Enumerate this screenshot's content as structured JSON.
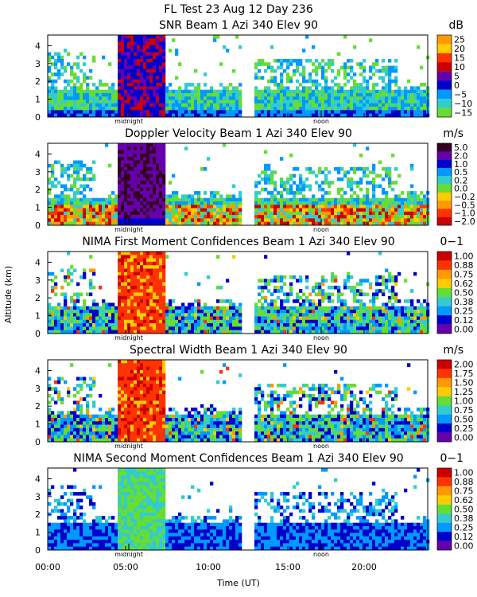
{
  "chart_data": {
    "type": "heatmap",
    "title": "FL Test  23 Aug 12 Day 236",
    "xlabel": "Time (UT)",
    "ylabel": "Altitude (km)",
    "x_ticks": [
      "00:00",
      "05:00",
      "10:00",
      "15:00",
      "20:00"
    ],
    "y_ticks": [
      "0",
      "1",
      "2",
      "3",
      "4"
    ],
    "markers": [
      "midnight",
      "noon"
    ],
    "panels": [
      {
        "title": "SNR Beam 1 Azi 340 Elev 90",
        "unit": "dB",
        "colorbar": [
          "25",
          "20",
          "15",
          "10",
          "5",
          "0",
          "−5",
          "−10",
          "−15"
        ],
        "colors": [
          "#ff9900",
          "#ffcc00",
          "#ff3300",
          "#cc0000",
          "#6600aa",
          "#0000cc",
          "#0099ff",
          "#33cccc",
          "#66dd33"
        ]
      },
      {
        "title": "Doppler Velocity Beam 1 Azi 340 Elev 90",
        "unit": "m/s",
        "colorbar": [
          "5.0",
          "2.0",
          "1.0",
          "0.5",
          "0.2",
          "0.0",
          "−0.2",
          "−0.5",
          "−1.0",
          "−2.0"
        ],
        "colors": [
          "#330022",
          "#6600aa",
          "#0000cc",
          "#0099ff",
          "#33cccc",
          "#66dd33",
          "#ffcc00",
          "#ff9900",
          "#ff3300",
          "#cc0000"
        ]
      },
      {
        "title": "NIMA First Moment Confidences Beam 1 Azi 340 Elev 90",
        "unit": "0−1",
        "colorbar": [
          "1.00",
          "0.88",
          "0.75",
          "0.62",
          "0.50",
          "0.38",
          "0.25",
          "0.12",
          "0.00"
        ],
        "colors": [
          "#cc0000",
          "#ff3300",
          "#ff9900",
          "#ffcc00",
          "#66dd33",
          "#33cccc",
          "#0099ff",
          "#0000cc",
          "#6600aa"
        ]
      },
      {
        "title": "Spectral Width Beam 1 Azi 340 Elev 90",
        "unit": "m/s",
        "colorbar": [
          "2.00",
          "1.75",
          "1.50",
          "1.25",
          "1.00",
          "0.75",
          "0.50",
          "0.25",
          "0.00"
        ],
        "colors": [
          "#cc0000",
          "#ff3300",
          "#ff9900",
          "#ffcc00",
          "#66dd33",
          "#33cccc",
          "#0099ff",
          "#0000cc",
          "#6600aa"
        ]
      },
      {
        "title": "NIMA Second Moment Confidences Beam 1 Azi 340 Elev 90",
        "unit": "0−1",
        "colorbar": [
          "1.00",
          "0.88",
          "0.75",
          "0.62",
          "0.50",
          "0.38",
          "0.25",
          "0.12",
          "0.00"
        ],
        "colors": [
          "#cc0000",
          "#ff3300",
          "#ff9900",
          "#ffcc00",
          "#66dd33",
          "#33cccc",
          "#0099ff",
          "#0000cc",
          "#6600aa"
        ]
      }
    ]
  }
}
